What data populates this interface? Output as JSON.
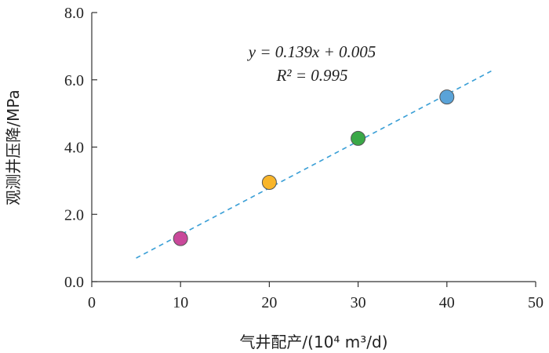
{
  "chart_data": {
    "type": "scatter",
    "xlabel": "气井配产/(10⁴ m³/d)",
    "ylabel": "观测井压降/MPa",
    "xlim": [
      0,
      50
    ],
    "ylim": [
      0,
      8
    ],
    "x_ticks": [
      "0",
      "10",
      "20",
      "30",
      "40",
      "50"
    ],
    "y_ticks": [
      "0.0",
      "2.0",
      "4.0",
      "6.0",
      "8.0"
    ],
    "points": [
      {
        "x": 10,
        "y": 1.28,
        "color": "#c9489a"
      },
      {
        "x": 20,
        "y": 2.95,
        "color": "#f8b52a"
      },
      {
        "x": 30,
        "y": 4.26,
        "color": "#3aa847"
      },
      {
        "x": 40,
        "y": 5.49,
        "color": "#5aa3d8"
      }
    ],
    "trendline": {
      "slope": 0.139,
      "intercept": 0.005,
      "x_range": [
        5,
        45
      ],
      "color": "#3a9fd6",
      "style": "dashed"
    },
    "annotations": {
      "equation": "y = 0.139x + 0.005",
      "r_squared": "R² = 0.995"
    },
    "grid": false,
    "legend": "none"
  }
}
